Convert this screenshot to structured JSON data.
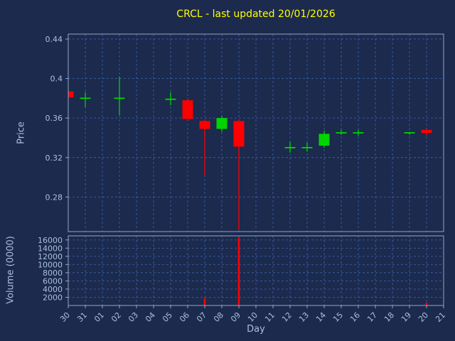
{
  "title": "CRCL - last updated 20/01/2026",
  "colors": {
    "background": "#1b2a4d",
    "grid": "#3a5fa5",
    "axis": "#93a7c8",
    "tick_text": "#a9c0dd",
    "label_text": "#a9c0dd",
    "title_text": "#ffff00",
    "up": "#00d500",
    "down": "#ff0000"
  },
  "chart_data": [
    {
      "type": "candlestick",
      "title": "CRCL - last updated 20/01/2026",
      "xlabel": "Day",
      "ylabel": "Price",
      "ylim": [
        0.245,
        0.445
      ],
      "yticks": [
        {
          "value": 0.28,
          "label": "0.28"
        },
        {
          "value": 0.32,
          "label": "0.32"
        },
        {
          "value": 0.36,
          "label": "0.36"
        },
        {
          "value": 0.4,
          "label": "0.4"
        },
        {
          "value": 0.44,
          "label": "0.44"
        }
      ],
      "x_categories": [
        "30",
        "31",
        "01",
        "02",
        "03",
        "04",
        "05",
        "06",
        "07",
        "08",
        "09",
        "10",
        "11",
        "12",
        "13",
        "14",
        "15",
        "16",
        "17",
        "18",
        "19",
        "20",
        "21"
      ],
      "grid": "dashed",
      "candles": [
        {
          "day": "30",
          "open": 0.387,
          "high": 0.388,
          "low": 0.38,
          "close": 0.381,
          "color": "down"
        },
        {
          "day": "31",
          "open": 0.38,
          "high": 0.386,
          "low": 0.371,
          "close": 0.38,
          "color": "up"
        },
        {
          "day": "02",
          "open": 0.38,
          "high": 0.402,
          "low": 0.363,
          "close": 0.381,
          "color": "up"
        },
        {
          "day": "05",
          "open": 0.379,
          "high": 0.386,
          "low": 0.373,
          "close": 0.379,
          "color": "up"
        },
        {
          "day": "06",
          "open": 0.378,
          "high": 0.379,
          "low": 0.357,
          "close": 0.359,
          "color": "down"
        },
        {
          "day": "07",
          "open": 0.357,
          "high": 0.358,
          "low": 0.302,
          "close": 0.349,
          "color": "down"
        },
        {
          "day": "08",
          "open": 0.349,
          "high": 0.362,
          "low": 0.346,
          "close": 0.36,
          "color": "up"
        },
        {
          "day": "09",
          "open": 0.357,
          "high": 0.358,
          "low": 0.247,
          "close": 0.331,
          "color": "down"
        },
        {
          "day": "12",
          "open": 0.33,
          "high": 0.336,
          "low": 0.325,
          "close": 0.33,
          "color": "up"
        },
        {
          "day": "13",
          "open": 0.33,
          "high": 0.335,
          "low": 0.326,
          "close": 0.33,
          "color": "up"
        },
        {
          "day": "14",
          "open": 0.332,
          "high": 0.347,
          "low": 0.33,
          "close": 0.344,
          "color": "up"
        },
        {
          "day": "15",
          "open": 0.345,
          "high": 0.348,
          "low": 0.343,
          "close": 0.345,
          "color": "up"
        },
        {
          "day": "16",
          "open": 0.345,
          "high": 0.348,
          "low": 0.342,
          "close": 0.345,
          "color": "up"
        },
        {
          "day": "19",
          "open": 0.345,
          "high": 0.346,
          "low": 0.343,
          "close": 0.345,
          "color": "up"
        },
        {
          "day": "20",
          "open": 0.348,
          "high": 0.349,
          "low": 0.342,
          "close": 0.345,
          "color": "down"
        }
      ]
    },
    {
      "type": "bar",
      "ylabel": "Volume (0000)",
      "ylim": [
        0,
        17000
      ],
      "yticks": [
        {
          "value": 2000,
          "label": "2000"
        },
        {
          "value": 4000,
          "label": "4000"
        },
        {
          "value": 6000,
          "label": "6000"
        },
        {
          "value": 8000,
          "label": "8000"
        },
        {
          "value": 10000,
          "label": "10000"
        },
        {
          "value": 12000,
          "label": "12000"
        },
        {
          "value": 14000,
          "label": "14000"
        },
        {
          "value": 16000,
          "label": "16000"
        }
      ],
      "bars": [
        {
          "day": "07",
          "value": 1800,
          "color": "down"
        },
        {
          "day": "09",
          "value": 16500,
          "color": "down"
        },
        {
          "day": "20",
          "value": 700,
          "color": "down"
        }
      ]
    }
  ]
}
